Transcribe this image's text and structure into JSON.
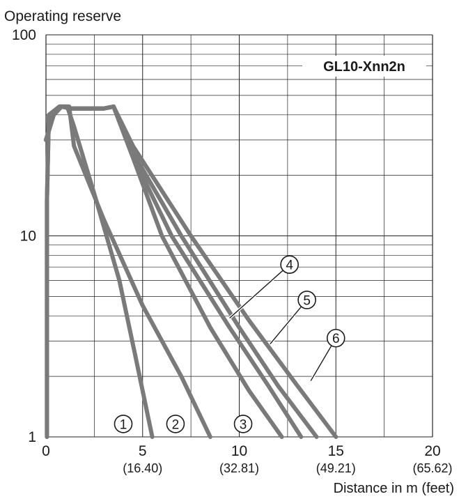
{
  "chart_data": {
    "type": "line",
    "title": "GL10-Xnn2n",
    "ylabel": "Operating reserve",
    "xlabel": "Distance in m (feet)",
    "y_scale": "log",
    "ylim": [
      1,
      100
    ],
    "xlim": [
      0,
      20
    ],
    "x_ticks": [
      {
        "value": 0,
        "label": "0",
        "sub": ""
      },
      {
        "value": 5,
        "label": "5",
        "sub": "(16.40)"
      },
      {
        "value": 10,
        "label": "10",
        "sub": "(32.81)"
      },
      {
        "value": 15,
        "label": "15",
        "sub": "(49.21)"
      },
      {
        "value": 20,
        "label": "20",
        "sub": "(65.62)"
      }
    ],
    "y_ticks": [
      {
        "value": 1,
        "label": "1"
      },
      {
        "value": 10,
        "label": "10"
      },
      {
        "value": 100,
        "label": "100"
      }
    ],
    "grid": true,
    "line_color": "#7a7a7a",
    "series": [
      {
        "name": "1",
        "points": [
          [
            0.05,
            1
          ],
          [
            0.05,
            15
          ],
          [
            0.15,
            40
          ],
          [
            0.7,
            44
          ],
          [
            1.1,
            44
          ],
          [
            1.45,
            35
          ],
          [
            2.6,
            15
          ],
          [
            3.8,
            6
          ],
          [
            4.6,
            2.6
          ],
          [
            5.5,
            1
          ]
        ]
      },
      {
        "name": "2",
        "points": [
          [
            0.05,
            1
          ],
          [
            0.05,
            15
          ],
          [
            0.15,
            40
          ],
          [
            0.7,
            44
          ],
          [
            1.2,
            44
          ],
          [
            1.45,
            28
          ],
          [
            3,
            12
          ],
          [
            5,
            4.5
          ],
          [
            7,
            2
          ],
          [
            8.5,
            1
          ]
        ]
      },
      {
        "name": "3",
        "points": [
          [
            0,
            30
          ],
          [
            0.4,
            40
          ],
          [
            0.8,
            44
          ],
          [
            1.3,
            43
          ],
          [
            3,
            43
          ],
          [
            3.5,
            44
          ],
          [
            4.4,
            26
          ],
          [
            6,
            10
          ],
          [
            8.5,
            3.5
          ],
          [
            10.5,
            1.7
          ],
          [
            12.2,
            1
          ]
        ]
      },
      {
        "name": "4",
        "points": [
          [
            0,
            30
          ],
          [
            0.4,
            40
          ],
          [
            0.8,
            44
          ],
          [
            1.3,
            43
          ],
          [
            3,
            43
          ],
          [
            3.5,
            44
          ],
          [
            4.4,
            26
          ],
          [
            6.5,
            10
          ],
          [
            9.5,
            3.5
          ],
          [
            11.5,
            1.8
          ],
          [
            13.2,
            1
          ]
        ]
      },
      {
        "name": "5",
        "points": [
          [
            0,
            30
          ],
          [
            0.4,
            40
          ],
          [
            0.8,
            44
          ],
          [
            1.3,
            43
          ],
          [
            3,
            43
          ],
          [
            3.5,
            44
          ],
          [
            4.4,
            27
          ],
          [
            7,
            10
          ],
          [
            10,
            3.5
          ],
          [
            12,
            1.8
          ],
          [
            14,
            1
          ]
        ]
      },
      {
        "name": "6",
        "points": [
          [
            0,
            30
          ],
          [
            0.4,
            40
          ],
          [
            0.8,
            44
          ],
          [
            1.3,
            43
          ],
          [
            3,
            43
          ],
          [
            3.5,
            44
          ],
          [
            4.5,
            28
          ],
          [
            7.5,
            10
          ],
          [
            10.5,
            3.8
          ],
          [
            13,
            1.8
          ],
          [
            15,
            1
          ]
        ]
      }
    ],
    "annotations": [
      {
        "label": "1",
        "x": 4.0,
        "y": 1.16
      },
      {
        "label": "2",
        "x": 6.7,
        "y": 1.16
      },
      {
        "label": "3",
        "x": 10.2,
        "y": 1.16
      },
      {
        "label": "4",
        "x": 12.6,
        "y": 7.2,
        "target": [
          9.5,
          3.9
        ]
      },
      {
        "label": "5",
        "x": 13.5,
        "y": 4.8,
        "target": [
          11.6,
          2.9
        ]
      },
      {
        "label": "6",
        "x": 15.0,
        "y": 3.1,
        "target": [
          13.7,
          1.9
        ]
      }
    ]
  }
}
